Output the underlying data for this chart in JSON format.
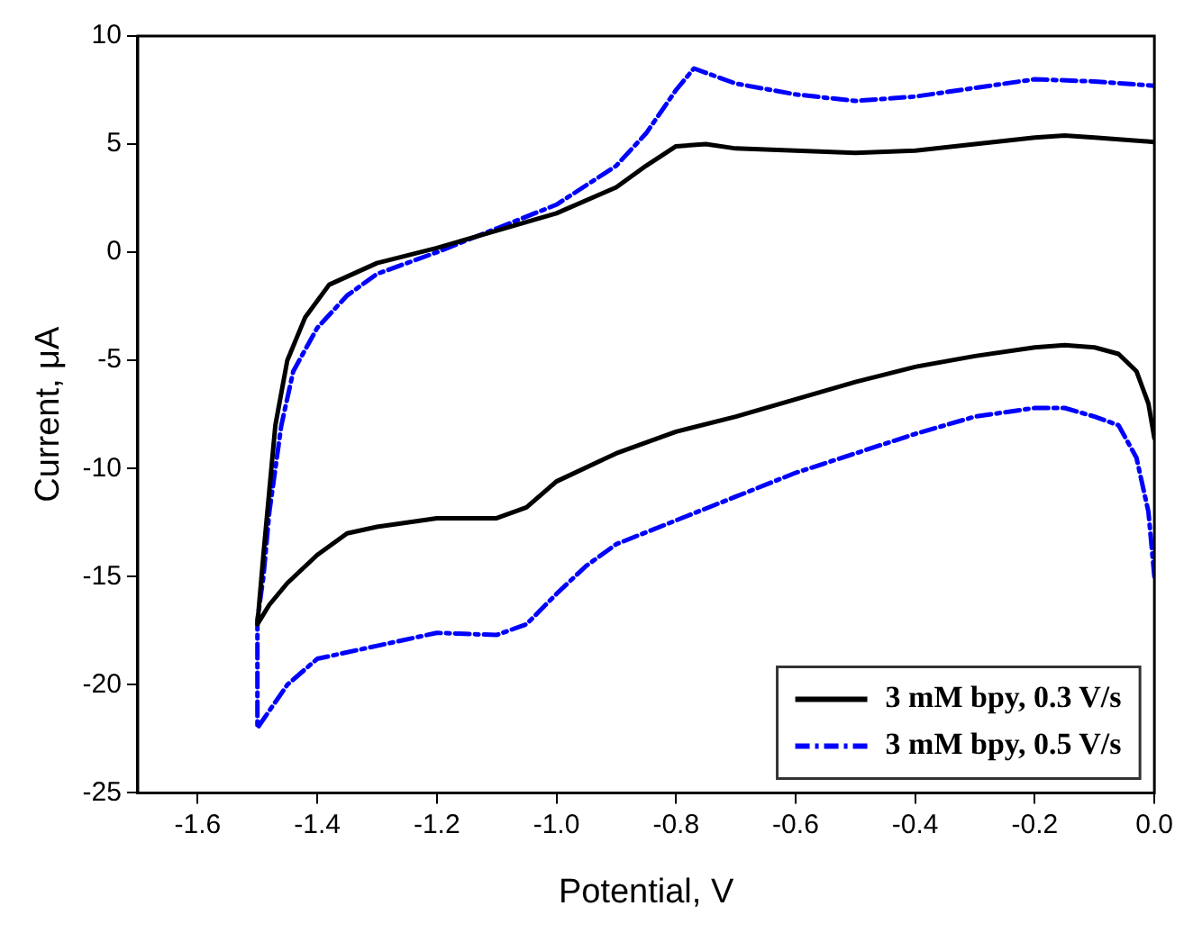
{
  "chart_data": {
    "type": "line",
    "xlabel": "Potential, V",
    "ylabel": "Current, μA",
    "xlim": [
      -1.7,
      0
    ],
    "ylim": [
      -25,
      10
    ],
    "xticks": [
      {
        "value": -1.6,
        "label": "-1.6"
      },
      {
        "value": -1.4,
        "label": "-1.4"
      },
      {
        "value": -1.2,
        "label": "-1.2"
      },
      {
        "value": -1.0,
        "label": "-1.0"
      },
      {
        "value": -0.8,
        "label": "-0.8"
      },
      {
        "value": -0.6,
        "label": "-0.6"
      },
      {
        "value": -0.4,
        "label": "-0.4"
      },
      {
        "value": -0.2,
        "label": "-0.2"
      },
      {
        "value": 0,
        "label": "0.0"
      }
    ],
    "yticks": [
      -25,
      -20,
      -15,
      -10,
      -5,
      0,
      5,
      10
    ],
    "grid": false,
    "legend": "bottom right",
    "marker": "none",
    "series": [
      {
        "name": "3 mM bpy, 0.3 V/s",
        "color": "#000000",
        "line_style": "solid",
        "x": [
          0,
          -0.01,
          -0.03,
          -0.06,
          -0.1,
          -0.15,
          -0.2,
          -0.3,
          -0.4,
          -0.5,
          -0.6,
          -0.7,
          -0.8,
          -0.9,
          -1.0,
          -1.05,
          -1.1,
          -1.2,
          -1.3,
          -1.35,
          -1.4,
          -1.45,
          -1.48,
          -1.5,
          -1.49,
          -1.48,
          -1.47,
          -1.45,
          -1.42,
          -1.38,
          -1.3,
          -1.2,
          -1.1,
          -1.0,
          -0.9,
          -0.85,
          -0.8,
          -0.75,
          -0.7,
          -0.6,
          -0.5,
          -0.4,
          -0.3,
          -0.2,
          -0.15,
          -0.1,
          0
        ],
        "values": [
          -8.6,
          -7,
          -5.5,
          -4.7,
          -4.4,
          -4.3,
          -4.4,
          -4.8,
          -5.3,
          -6.0,
          -6.8,
          -7.6,
          -8.3,
          -9.3,
          -10.6,
          -11.8,
          -12.3,
          -12.3,
          -12.7,
          -13.0,
          -14,
          -15.3,
          -16.3,
          -17.2,
          -14,
          -11,
          -8,
          -5,
          -3,
          -1.5,
          -0.5,
          0.2,
          1.0,
          1.8,
          3.0,
          4,
          4.9,
          5.0,
          4.8,
          4.7,
          4.6,
          4.7,
          5.0,
          5.3,
          5.4,
          5.3,
          5.1
        ]
      },
      {
        "name": "3 mM bpy, 0.5 V/s",
        "color": "#0000ff",
        "line_style": "dashed",
        "x": [
          0,
          -0.01,
          -0.03,
          -0.06,
          -0.1,
          -0.15,
          -0.2,
          -0.3,
          -0.4,
          -0.5,
          -0.6,
          -0.7,
          -0.8,
          -0.9,
          -0.95,
          -1.0,
          -1.05,
          -1.1,
          -1.2,
          -1.3,
          -1.4,
          -1.45,
          -1.5,
          -1.5,
          -1.49,
          -1.48,
          -1.46,
          -1.44,
          -1.4,
          -1.35,
          -1.3,
          -1.2,
          -1.1,
          -1.0,
          -0.9,
          -0.85,
          -0.8,
          -0.77,
          -0.7,
          -0.6,
          -0.5,
          -0.4,
          -0.3,
          -0.2,
          -0.1,
          0
        ],
        "values": [
          -15,
          -12,
          -9.5,
          -8,
          -7.6,
          -7.2,
          -7.2,
          -7.6,
          -8.4,
          -9.3,
          -10.2,
          -11.3,
          -12.4,
          -13.5,
          -14.5,
          -15.8,
          -17.2,
          -17.7,
          -17.6,
          -18.2,
          -18.8,
          -20,
          -22,
          -17,
          -15,
          -12,
          -8,
          -5.5,
          -3.5,
          -2,
          -1,
          0,
          1.1,
          2.2,
          4.0,
          5.5,
          7.5,
          8.5,
          7.8,
          7.3,
          7.0,
          7.2,
          7.6,
          8.0,
          7.9,
          7.7
        ]
      }
    ]
  }
}
